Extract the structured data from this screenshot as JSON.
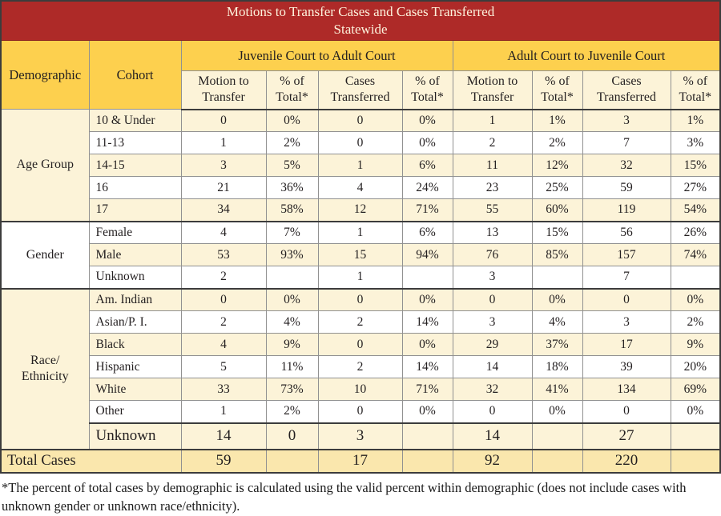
{
  "title": {
    "line1": "Motions to Transfer Cases and Cases Transferred",
    "line2": "Statewide"
  },
  "header": {
    "demographic": "Demographic",
    "cohort": "Cohort",
    "group1": "Juvenile Court to Adult Court",
    "group2": "Adult Court to Juvenile Court",
    "subheaders": [
      "Motion to Transfer",
      "% of Total*",
      "Cases Transferred",
      "% of Total*",
      "Motion to Transfer",
      "% of Total*",
      "Cases Transferred",
      "% of Total*"
    ]
  },
  "table": {
    "groups": [
      {
        "demographic": "Age Group",
        "rows": [
          {
            "cohort": "10 & Under",
            "values": [
              "0",
              "0%",
              "0",
              "0%",
              "1",
              "1%",
              "3",
              "1%"
            ]
          },
          {
            "cohort": "11-13",
            "values": [
              "1",
              "2%",
              "0",
              "0%",
              "2",
              "2%",
              "7",
              "3%"
            ]
          },
          {
            "cohort": "14-15",
            "values": [
              "3",
              "5%",
              "1",
              "6%",
              "11",
              "12%",
              "32",
              "15%"
            ]
          },
          {
            "cohort": "16",
            "values": [
              "21",
              "36%",
              "4",
              "24%",
              "23",
              "25%",
              "59",
              "27%"
            ]
          },
          {
            "cohort": "17",
            "values": [
              "34",
              "58%",
              "12",
              "71%",
              "55",
              "60%",
              "119",
              "54%"
            ]
          }
        ]
      },
      {
        "demographic": "Gender",
        "rows": [
          {
            "cohort": "Female",
            "values": [
              "4",
              "7%",
              "1",
              "6%",
              "13",
              "15%",
              "56",
              "26%"
            ]
          },
          {
            "cohort": "Male",
            "values": [
              "53",
              "93%",
              "15",
              "94%",
              "76",
              "85%",
              "157",
              "74%"
            ]
          },
          {
            "cohort": "Unknown",
            "values": [
              "2",
              "",
              "1",
              "",
              "3",
              "",
              "7",
              ""
            ]
          }
        ]
      },
      {
        "demographic": "Race/\nEthnicity",
        "rows": [
          {
            "cohort": "Am. Indian",
            "values": [
              "0",
              "0%",
              "0",
              "0%",
              "0",
              "0%",
              "0",
              "0%"
            ]
          },
          {
            "cohort": "Asian/P. I.",
            "values": [
              "2",
              "4%",
              "2",
              "14%",
              "3",
              "4%",
              "3",
              "2%"
            ]
          },
          {
            "cohort": "Black",
            "values": [
              "4",
              "9%",
              "0",
              "0%",
              "29",
              "37%",
              "17",
              "9%"
            ]
          },
          {
            "cohort": "Hispanic",
            "values": [
              "5",
              "11%",
              "2",
              "14%",
              "14",
              "18%",
              "39",
              "20%"
            ]
          },
          {
            "cohort": "White",
            "values": [
              "33",
              "73%",
              "10",
              "71%",
              "32",
              "41%",
              "134",
              "69%"
            ]
          },
          {
            "cohort": "Other",
            "values": [
              "1",
              "2%",
              "0",
              "0%",
              "0",
              "0%",
              "0",
              "0%"
            ]
          },
          {
            "cohort": "Unknown",
            "values": [
              "14",
              "0",
              "3",
              "",
              "14",
              "",
              "27",
              ""
            ],
            "emphasis": true
          }
        ]
      }
    ],
    "total": {
      "label": "Total Cases",
      "values": [
        "59",
        "",
        "17",
        "",
        "92",
        "",
        "220",
        ""
      ]
    }
  },
  "footnote": "*The percent of total cases by demographic is calculated using the valid percent within demographic (does not include cases with unknown gender or unknown race/ethnicity).",
  "colors": {
    "title_bar": "#AE2A28",
    "title_text": "#FDF2DC",
    "header_gold": "#FDD04E",
    "row_cream": "#FCF3D8",
    "row_white": "#FFFFFF",
    "total_row": "#FAE7AD",
    "text": "#231F20",
    "border_gray": "#919191",
    "border_dark": "#3C3C3C"
  }
}
